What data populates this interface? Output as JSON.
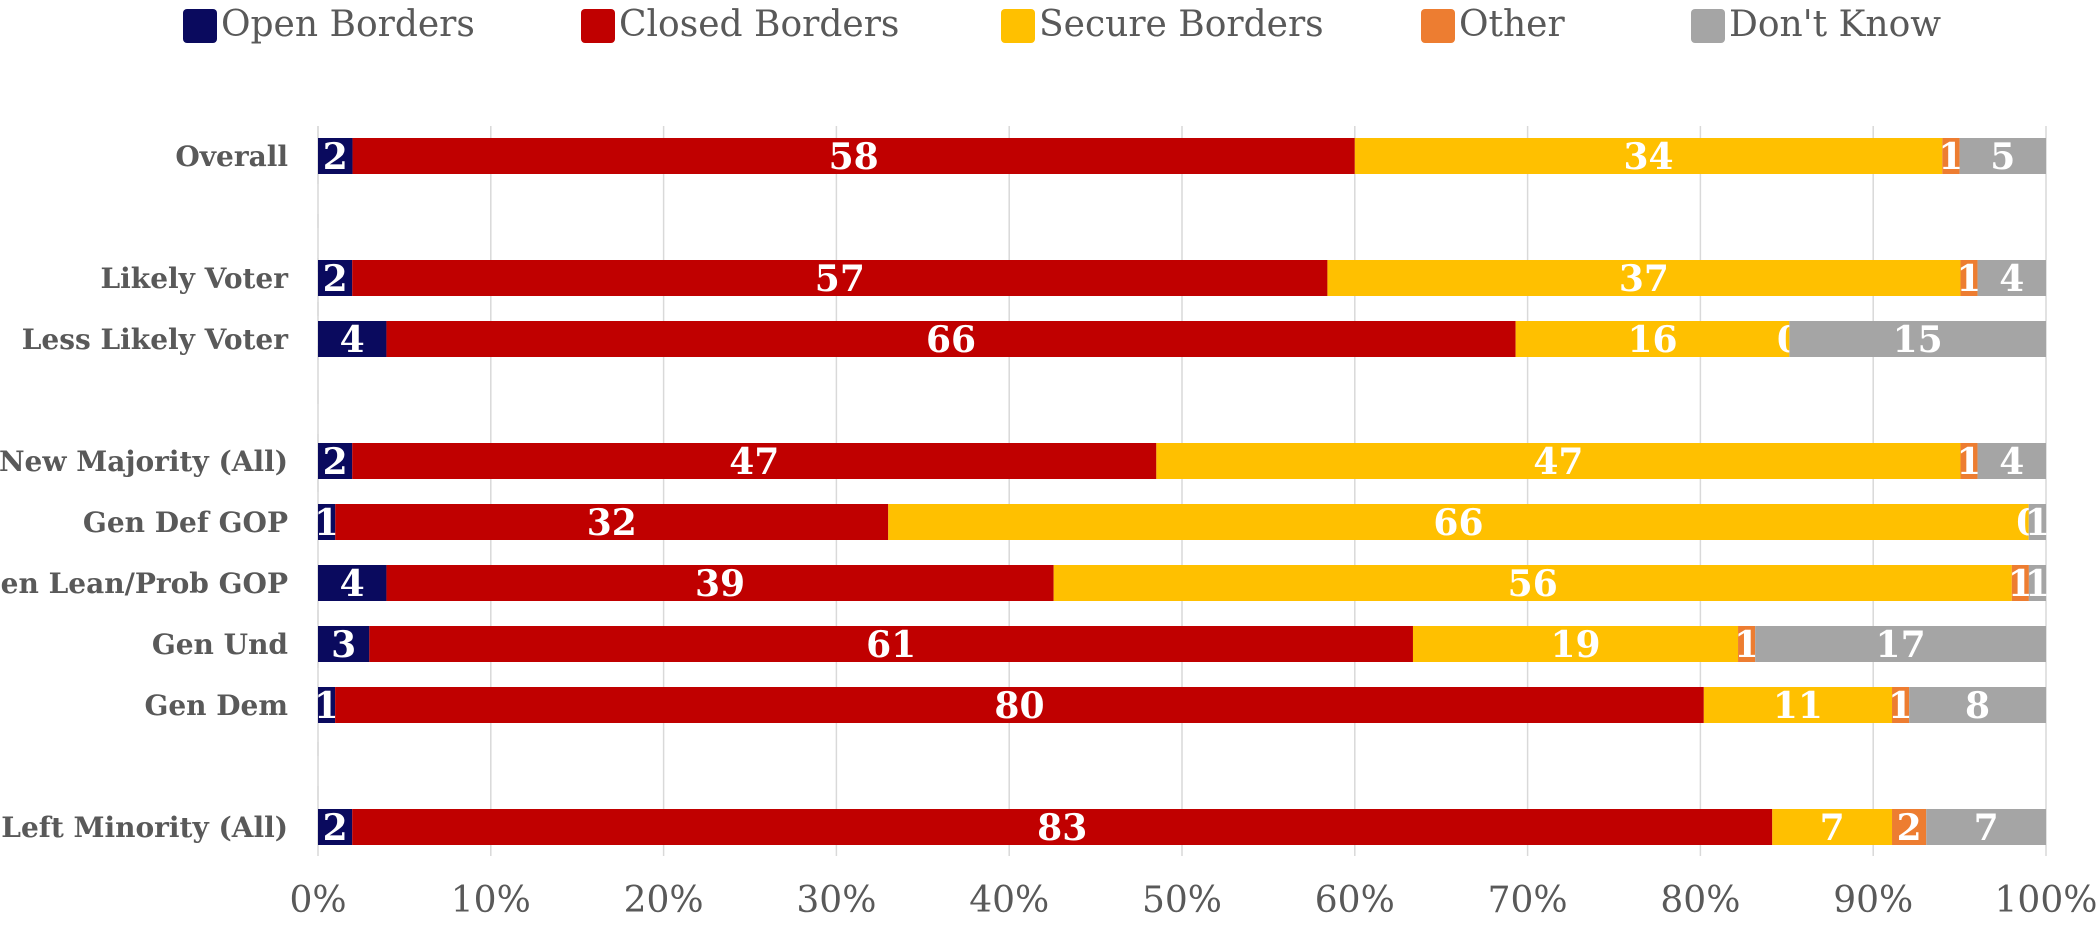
{
  "chart_data": {
    "type": "bar",
    "orientation": "horizontal",
    "stacked": "percent",
    "xlim": [
      0,
      100
    ],
    "x_ticks": [
      "0%",
      "10%",
      "20%",
      "30%",
      "40%",
      "50%",
      "60%",
      "70%",
      "80%",
      "90%",
      "100%"
    ],
    "grid": true,
    "legend_position": "top",
    "categories": [
      "Overall",
      "",
      "Likely Voter",
      "Less Likely Voter",
      "",
      "New Majority (All)",
      "Gen Def GOP",
      "Gen Lean/Prob GOP",
      "Gen Und",
      "Gen Dem",
      "",
      "Left Minority (All)"
    ],
    "series": [
      {
        "name": "Open Borders",
        "color": "#0a0a5e",
        "values": [
          2,
          null,
          2,
          4,
          null,
          2,
          1,
          4,
          3,
          1,
          null,
          2
        ]
      },
      {
        "name": "Closed Borders",
        "color": "#c00000",
        "values": [
          58,
          null,
          57,
          66,
          null,
          47,
          32,
          39,
          61,
          80,
          null,
          83
        ]
      },
      {
        "name": "Secure Borders",
        "color": "#ffc000",
        "values": [
          34,
          null,
          37,
          16,
          null,
          47,
          66,
          56,
          19,
          11,
          null,
          7
        ]
      },
      {
        "name": "Other",
        "color": "#ed7d31",
        "values": [
          1,
          null,
          1,
          0,
          null,
          1,
          0,
          1,
          1,
          1,
          null,
          2
        ]
      },
      {
        "name": "Don't Know",
        "color": "#a5a5a5",
        "values": [
          5,
          null,
          4,
          15,
          null,
          4,
          1,
          1,
          17,
          8,
          null,
          7
        ]
      }
    ]
  }
}
